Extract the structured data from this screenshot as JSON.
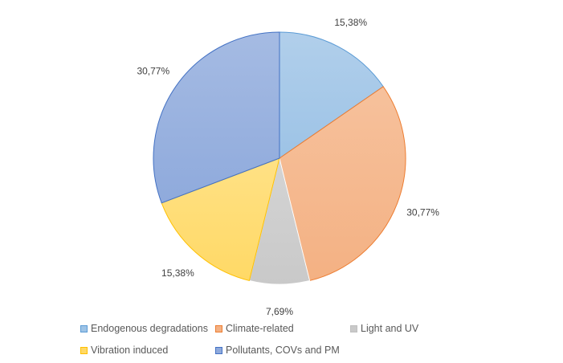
{
  "chart_data": {
    "type": "pie",
    "categories": [
      "Endogenous degradations",
      "Climate-related",
      "Light and UV",
      "Vibration induced",
      "Pollutants, COVs and PM"
    ],
    "values": [
      15.38,
      30.77,
      7.69,
      15.38,
      30.77
    ],
    "data_labels": [
      "15,38%",
      "30,77%",
      "7,69%",
      "15,38%",
      "30,77%"
    ],
    "colors": [
      "#9DC3E6",
      "#F4B183",
      "#C9C9C9",
      "#FFD966",
      "#8FAADC"
    ],
    "border_colors": [
      "#5B9BD5",
      "#ED7D31",
      "#FFFFFF",
      "#FFC000",
      "#4472C4"
    ],
    "start_angle_deg": 0,
    "direction": "clockwise",
    "legend_position": "bottom"
  }
}
